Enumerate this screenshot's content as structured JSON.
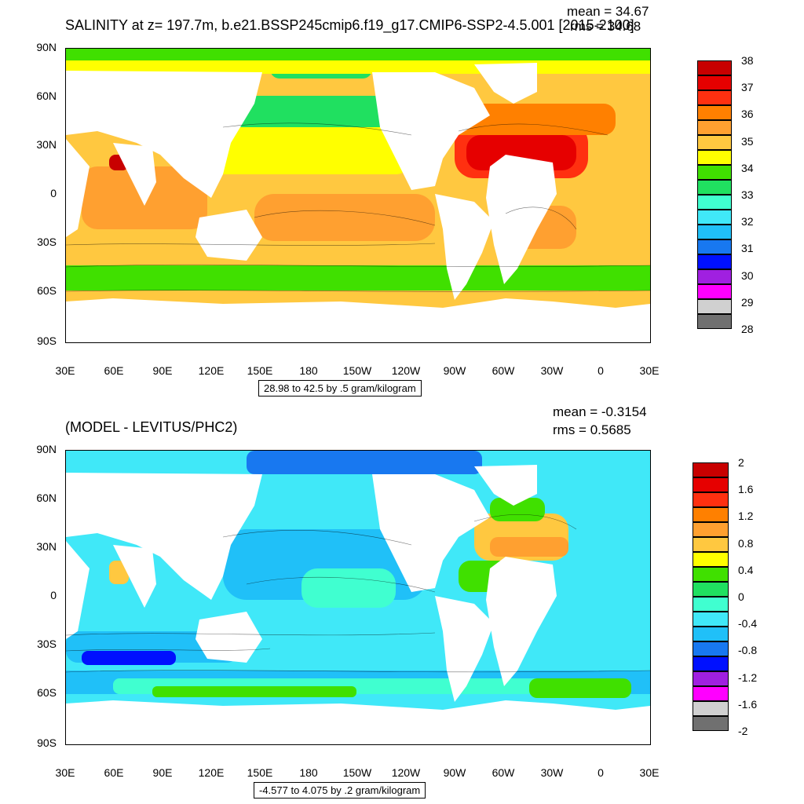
{
  "top": {
    "title": "SALINITY at z= 197.7m, b.e21.BSSP245cmip6.f19_g17.CMIP6-SSP2-4.5.001 [2015-2100]",
    "mean_text": "mean = 34.67",
    "rms_text": "rms = 34.68",
    "range_text": "28.98 to 42.5 by .5 gram/kilogram",
    "colorbar": {
      "labels": [
        "38",
        "37",
        "36",
        "35",
        "34",
        "33",
        "32",
        "31",
        "30",
        "29",
        "28"
      ],
      "colors": [
        "#c80000",
        "#e60000",
        "#ff3010",
        "#ff8000",
        "#ffa030",
        "#ffc840",
        "#ffff00",
        "#40e000",
        "#20e060",
        "#40ffd0",
        "#40e8f8",
        "#20c0f8",
        "#1878f0",
        "#0010ff",
        "#a020e0",
        "#ff00ff",
        "#d0d0d0",
        "#707070"
      ]
    }
  },
  "bottom": {
    "title": "(MODEL - LEVITUS/PHC2)",
    "mean_text": "mean = -0.3154",
    "rms_text": "rms = 0.5685",
    "range_text": "-4.577 to 4.075 by .2 gram/kilogram",
    "colorbar": {
      "labels": [
        "2",
        "1.6",
        "1.2",
        "0.8",
        "0.4",
        "0",
        "-0.4",
        "-0.8",
        "-1.2",
        "-1.6",
        "-2"
      ],
      "colors": [
        "#c80000",
        "#e60000",
        "#ff3010",
        "#ff8000",
        "#ffa030",
        "#ffc840",
        "#ffff00",
        "#40e000",
        "#20e060",
        "#40ffd0",
        "#40e8f8",
        "#20c0f8",
        "#1878f0",
        "#0010ff",
        "#a020e0",
        "#ff00ff",
        "#d0d0d0",
        "#707070"
      ]
    }
  },
  "axes": {
    "lat_labels": [
      "90N",
      "60N",
      "30N",
      "0",
      "30S",
      "60S",
      "90S"
    ],
    "lon_labels": [
      "30E",
      "60E",
      "90E",
      "120E",
      "150E",
      "180",
      "150W",
      "120W",
      "90W",
      "60W",
      "30W",
      "0",
      "30E"
    ]
  }
}
